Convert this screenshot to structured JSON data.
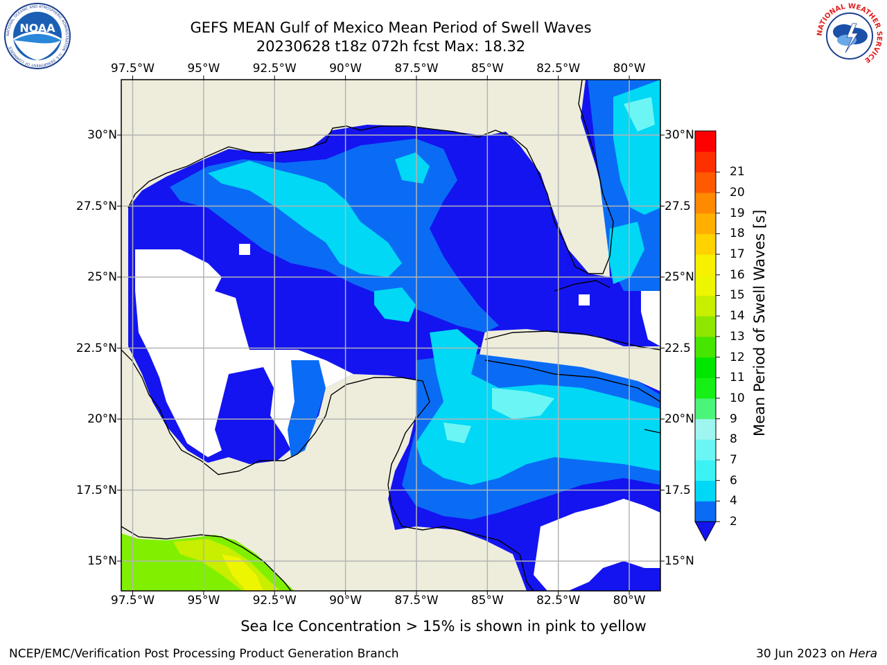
{
  "header": {
    "title_line1": "GEFS MEAN Gulf of Mexico Mean Period of Swell Waves",
    "title_line2": "20230628 t18z 072h fcst   Max: 18.32"
  },
  "logos": {
    "left": {
      "name": "noaa-logo",
      "text": "NOAA",
      "ring_text": "NATIONAL OCEANIC AND ATMOSPHERIC ADMINISTRATION · U.S. DEPARTMENT OF COMMERCE"
    },
    "right": {
      "name": "nws-logo",
      "ring_text": "NATIONAL WEATHER SERVICE"
    }
  },
  "map": {
    "x_ticks": [
      "97.5°W",
      "95°W",
      "92.5°W",
      "90°W",
      "87.5°W",
      "85°W",
      "82.5°W",
      "80°W"
    ],
    "y_ticks_left": [
      "30°N",
      "27.5°N",
      "25°N",
      "22.5°N",
      "20°N",
      "17.5°N",
      "15°N"
    ],
    "y_ticks_right": [
      "30°N",
      "27.5",
      "25°N",
      "22.5",
      "20°N",
      "17.5",
      "15°N"
    ],
    "lon_range": [
      -98,
      -79
    ],
    "lat_range": [
      14,
      32
    ],
    "gridlines": true,
    "colors": {
      "land": "#eeeddc",
      "ocean_missing": "#ffffff",
      "gridline": "#b0b0b0",
      "coast": "#000000"
    }
  },
  "colorbar": {
    "label": "Mean Period of Swell Waves [s]",
    "ticks": [
      "2",
      "4",
      "6",
      "7",
      "8",
      "9",
      "10",
      "11",
      "12",
      "13",
      "14",
      "15",
      "16",
      "17",
      "18",
      "19",
      "20",
      "21"
    ],
    "colors": [
      "#0a6cf5",
      "#00d8f5",
      "#3cf2f5",
      "#6cf5f5",
      "#9ff5f0",
      "#4bf57a",
      "#16f016",
      "#00e600",
      "#46e600",
      "#8fe600",
      "#c8ee00",
      "#eef500",
      "#f7f000",
      "#ffd200",
      "#ffaf00",
      "#ff8a00",
      "#ff5a00",
      "#ff3000",
      "#ff0000"
    ],
    "extend_color": "#1414f0"
  },
  "footer": {
    "note": "Sea Ice Concentration > 15% is shown in pink to yellow",
    "left": "NCEP/EMC/Verification Post Processing Product Generation Branch",
    "right_prefix": "30 Jun 2023 on",
    "right_host": "Hera"
  }
}
